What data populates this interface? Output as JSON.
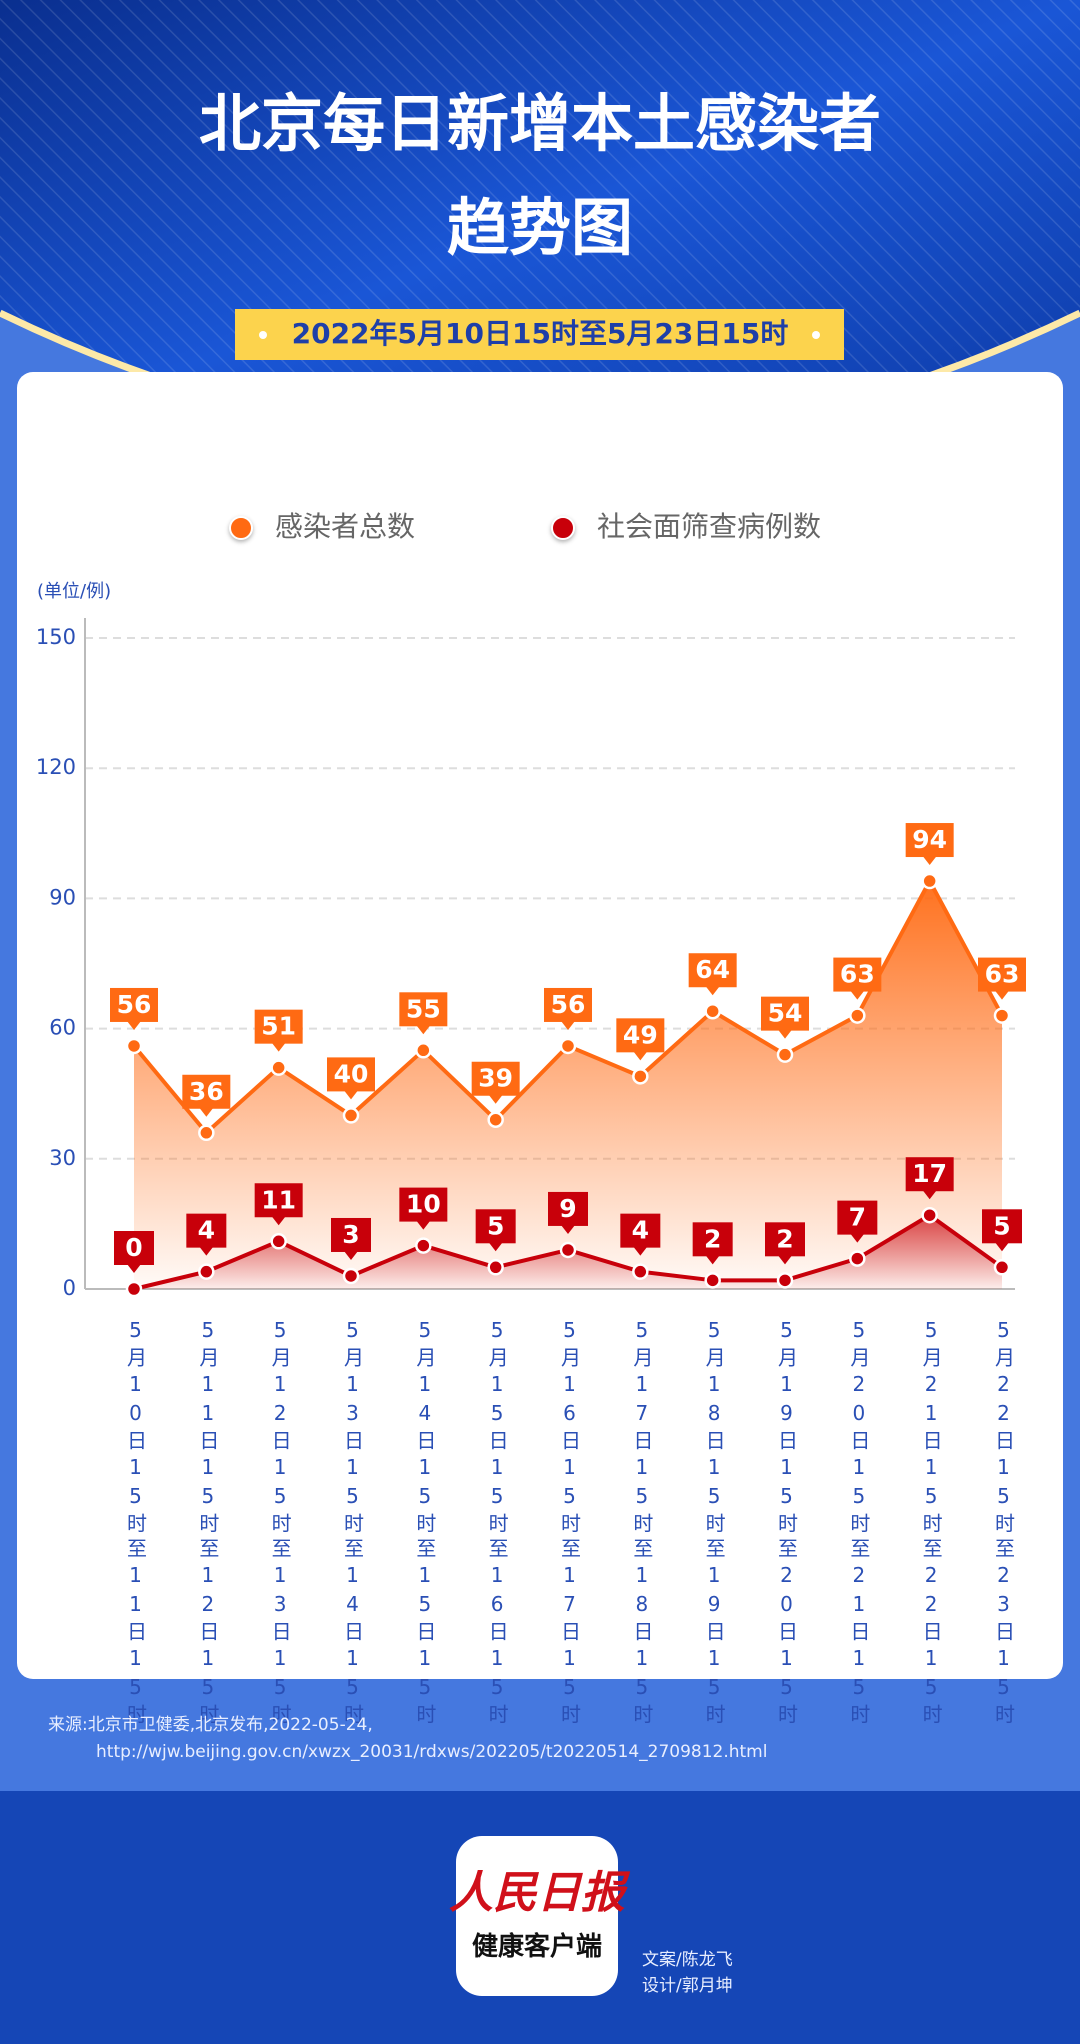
{
  "header": {
    "title_lines": [
      "北京每日新增本土感染者",
      "趋势图"
    ],
    "date_range": "2022年5月10日15时至5月23日15时"
  },
  "chart_data": {
    "type": "line",
    "y_unit": "(单位/例)",
    "categories": [
      "5月10日15时至11日15时",
      "5月11日15时至12日15时",
      "5月12日15时至13日15时",
      "5月13日15时至14日15时",
      "5月14日15时至15日15时",
      "5月15日15时至16日15时",
      "5月16日15时至17日15时",
      "5月17日15时至18日15时",
      "5月18日15时至19日15时",
      "5月19日15时至20日15时",
      "5月20日15时至21日15时",
      "5月21日15时至22日15时",
      "5月22日15时至23日15时"
    ],
    "series": [
      {
        "name": "感染者总数",
        "color": "#ff6a13",
        "values": [
          56,
          36,
          51,
          40,
          55,
          39,
          56,
          49,
          64,
          54,
          63,
          94,
          63
        ]
      },
      {
        "name": "社会面筛查病例数",
        "color": "#c8000a",
        "values": [
          0,
          4,
          11,
          3,
          10,
          5,
          9,
          4,
          2,
          2,
          7,
          17,
          5
        ]
      }
    ],
    "ylim": [
      0,
      150
    ],
    "yticks": [
      0,
      30,
      60,
      90,
      120,
      150
    ],
    "grid": true
  },
  "footer": {
    "source": "来源:北京市卫健委,北京发布,2022-05-24,",
    "url": "http://wjw.beijing.gov.cn/xwzx_20031/rdxws/202205/t20220514_2709812.html",
    "logo_top": "人民日报",
    "logo_bottom": "健康客户端",
    "credits": [
      "文案/陈龙飞",
      "设计/郭月坤"
    ]
  }
}
